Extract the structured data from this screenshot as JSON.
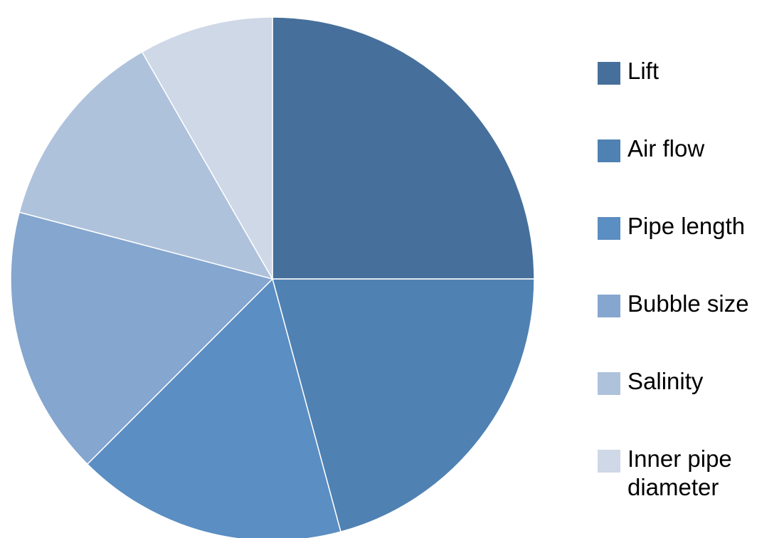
{
  "chart_data": {
    "type": "pie",
    "categories": [
      "Lift",
      "Air flow",
      "Pipe length",
      "Bubble size",
      "Salinity",
      "Inner pipe diameter"
    ],
    "values": [
      25,
      20.8,
      16.7,
      16.6,
      12.6,
      8.3
    ],
    "colors": [
      "#46709b",
      "#4f81b3",
      "#5b8ec2",
      "#84a6cf",
      "#afc2dc",
      "#ced8e6"
    ],
    "legend": "right"
  }
}
